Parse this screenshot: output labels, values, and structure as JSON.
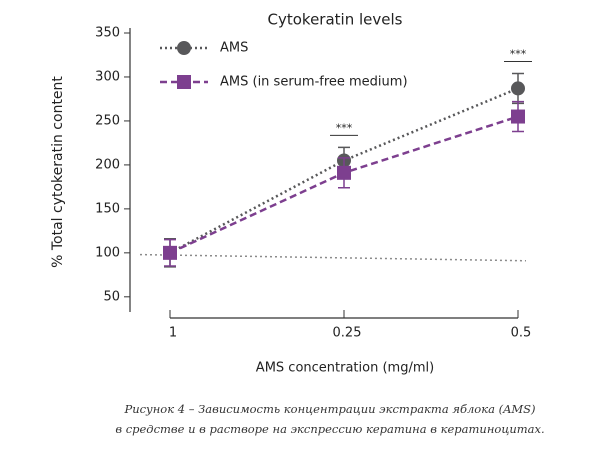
{
  "chart_data": {
    "type": "line",
    "title": "Cytokeratin levels",
    "x_label": "AMS concentration (mg/ml)",
    "y_label": "% Total cytokeratin content",
    "categories": [
      "1",
      "0.25",
      "0.5"
    ],
    "series": [
      {
        "name": "AMS",
        "color": "#58585a",
        "dash": "dotted",
        "marker": "circle",
        "values": [
          100,
          205,
          287
        ],
        "errors": [
          16,
          15,
          17
        ]
      },
      {
        "name": "AMS  (in serum-free medium)",
        "color": "#7d3f8f",
        "dash": "dashed",
        "marker": "square",
        "values": [
          100,
          191,
          255
        ],
        "errors": [
          15,
          17,
          17
        ]
      }
    ],
    "reference_line": {
      "color": "#8a8a8a",
      "values": [
        98,
        91
      ]
    },
    "significance": [
      {
        "category": "0.25",
        "label": "***"
      },
      {
        "category": "0.5",
        "label": "***"
      }
    ],
    "ylim": [
      35,
      350
    ],
    "yticks": [
      50,
      100,
      150,
      200,
      250,
      300,
      350
    ],
    "legend": "upper left",
    "caption": [
      "Рисунок 4 – Зависимость концентрации экстракта яблока (AMS)",
      "в средстве и в растворе на экспрессию кератина в кератиноцитах."
    ]
  }
}
